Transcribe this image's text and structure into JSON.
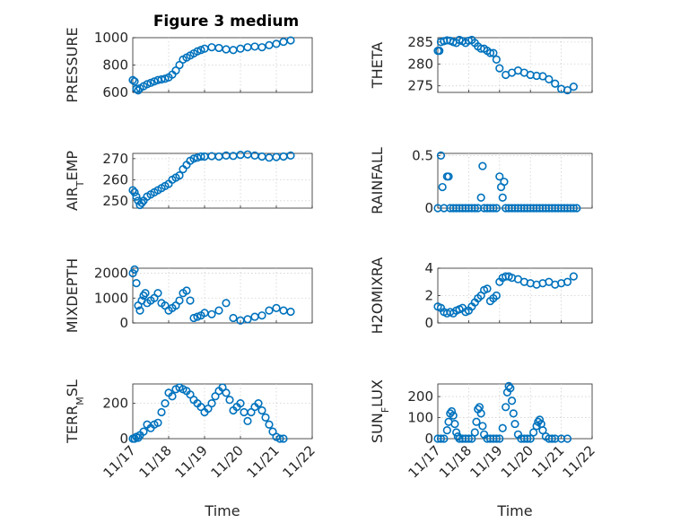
{
  "title": "Figure 3 medium",
  "colors": {
    "series": "#0072BD",
    "axes": "#262626",
    "grid": "#d0d0d0"
  },
  "chart_data": [
    {
      "type": "scatter",
      "ylabel": "PRESSURE",
      "xlabel": "",
      "xlim": [
        0,
        5
      ],
      "ylim": [
        600,
        1000
      ],
      "yticks": [
        600,
        800,
        1000
      ],
      "ytick_labels": [
        "600",
        "800",
        "1000"
      ],
      "xticks": [
        0,
        1,
        2,
        3,
        4,
        5
      ],
      "xtick_labels": [],
      "grid": true,
      "x": [
        0.0,
        0.05,
        0.1,
        0.15,
        0.2,
        0.3,
        0.4,
        0.5,
        0.6,
        0.7,
        0.8,
        0.9,
        1.0,
        1.1,
        1.2,
        1.3,
        1.4,
        1.5,
        1.6,
        1.7,
        1.8,
        1.9,
        2.0,
        2.2,
        2.4,
        2.6,
        2.8,
        3.0,
        3.2,
        3.4,
        3.6,
        3.8,
        4.0,
        4.2,
        4.4
      ],
      "y": [
        690,
        680,
        625,
        615,
        630,
        645,
        660,
        670,
        680,
        690,
        695,
        700,
        710,
        730,
        760,
        800,
        840,
        855,
        870,
        885,
        900,
        910,
        920,
        930,
        925,
        915,
        910,
        920,
        930,
        935,
        930,
        945,
        955,
        970,
        980
      ]
    },
    {
      "type": "scatter",
      "ylabel": "THETA",
      "xlabel": "",
      "xlim": [
        0,
        5
      ],
      "ylim": [
        273.5,
        286
      ],
      "yticks": [
        275,
        280,
        285
      ],
      "ytick_labels": [
        "275",
        "280",
        "285"
      ],
      "xticks": [
        0,
        1,
        2,
        3,
        4,
        5
      ],
      "xtick_labels": [],
      "grid": true,
      "x": [
        0.0,
        0.05,
        0.1,
        0.2,
        0.3,
        0.4,
        0.5,
        0.6,
        0.7,
        0.8,
        0.9,
        1.0,
        1.1,
        1.2,
        1.3,
        1.4,
        1.5,
        1.6,
        1.7,
        1.8,
        1.9,
        2.0,
        2.2,
        2.4,
        2.6,
        2.8,
        3.0,
        3.2,
        3.4,
        3.6,
        3.8,
        4.0,
        4.2,
        4.4
      ],
      "y": [
        283,
        283,
        285,
        285.2,
        285.4,
        285.3,
        285,
        284.8,
        285.5,
        285.2,
        284.8,
        285.3,
        285.5,
        284.8,
        284,
        283.5,
        283.5,
        283,
        282.5,
        282.5,
        281,
        279,
        277.5,
        278,
        278.5,
        278,
        277.5,
        277.3,
        277.2,
        276.5,
        275.5,
        274.3,
        274,
        274.8
      ]
    },
    {
      "type": "scatter",
      "ylabel": "AIR_TEMP",
      "xlabel": "",
      "xlim": [
        0,
        5
      ],
      "ylim": [
        246.5,
        272.5
      ],
      "yticks": [
        250,
        260,
        270
      ],
      "ytick_labels": [
        "250",
        "260",
        "270"
      ],
      "xticks": [
        0,
        1,
        2,
        3,
        4,
        5
      ],
      "xtick_labels": [],
      "grid": true,
      "x": [
        0.0,
        0.05,
        0.1,
        0.15,
        0.2,
        0.25,
        0.3,
        0.4,
        0.5,
        0.6,
        0.7,
        0.8,
        0.9,
        1.0,
        1.1,
        1.2,
        1.3,
        1.4,
        1.5,
        1.6,
        1.7,
        1.8,
        1.9,
        2.0,
        2.2,
        2.4,
        2.6,
        2.8,
        3.0,
        3.2,
        3.4,
        3.6,
        3.8,
        4.0,
        4.2,
        4.4
      ],
      "y": [
        255,
        254,
        252,
        250,
        248,
        249,
        250,
        252,
        253,
        254,
        255,
        256,
        257,
        258,
        260,
        261,
        262,
        265,
        267,
        269,
        270,
        270.5,
        271,
        271,
        271.2,
        271,
        271.5,
        271.3,
        271.8,
        272,
        271.5,
        271,
        270.5,
        270.8,
        271,
        271.5
      ]
    },
    {
      "type": "scatter",
      "ylabel": "RAINFALL",
      "xlabel": "",
      "xlim": [
        0,
        5
      ],
      "ylim": [
        0,
        0.52
      ],
      "yticks": [
        0,
        0.5
      ],
      "ytick_labels": [
        "0",
        "0.5"
      ],
      "xticks": [
        0,
        1,
        2,
        3,
        4,
        5
      ],
      "xtick_labels": [],
      "grid": true,
      "x": [
        0.0,
        0.1,
        0.15,
        0.2,
        0.3,
        0.35,
        0.4,
        0.5,
        0.6,
        0.7,
        0.8,
        0.9,
        1.0,
        1.1,
        1.2,
        1.3,
        1.4,
        1.45,
        1.5,
        1.6,
        1.7,
        1.8,
        1.9,
        2.0,
        2.05,
        2.1,
        2.15,
        2.2,
        2.3,
        2.4,
        2.5,
        2.6,
        2.7,
        2.8,
        2.9,
        3.0,
        3.1,
        3.2,
        3.3,
        3.4,
        3.5,
        3.6,
        3.7,
        3.8,
        3.9,
        4.0,
        4.1,
        4.2,
        4.3,
        4.4,
        4.5
      ],
      "y": [
        0,
        0.5,
        0.2,
        0,
        0.3,
        0.3,
        0,
        0,
        0,
        0,
        0,
        0,
        0,
        0,
        0,
        0,
        0.1,
        0.4,
        0,
        0,
        0,
        0,
        0,
        0.3,
        0.2,
        0.1,
        0.25,
        0,
        0,
        0,
        0,
        0,
        0,
        0,
        0,
        0,
        0,
        0,
        0,
        0,
        0,
        0,
        0,
        0,
        0,
        0,
        0,
        0,
        0,
        0,
        0
      ]
    },
    {
      "type": "scatter",
      "ylabel": "MIXDEPTH",
      "xlabel": "",
      "xlim": [
        0,
        5
      ],
      "ylim": [
        0,
        2200
      ],
      "yticks": [
        0,
        1000,
        2000
      ],
      "ytick_labels": [
        "0",
        "1000",
        "2000"
      ],
      "xticks": [
        0,
        1,
        2,
        3,
        4,
        5
      ],
      "xtick_labels": [],
      "grid": true,
      "x": [
        0.0,
        0.05,
        0.1,
        0.15,
        0.2,
        0.25,
        0.3,
        0.35,
        0.4,
        0.5,
        0.6,
        0.7,
        0.8,
        0.9,
        1.0,
        1.1,
        1.2,
        1.3,
        1.4,
        1.5,
        1.6,
        1.7,
        1.8,
        1.9,
        2.0,
        2.2,
        2.4,
        2.6,
        2.8,
        3.0,
        3.2,
        3.4,
        3.6,
        3.8,
        4.0,
        4.2,
        4.4
      ],
      "y": [
        2000,
        2150,
        1600,
        700,
        500,
        900,
        1100,
        1200,
        800,
        900,
        1000,
        1200,
        800,
        700,
        500,
        600,
        700,
        900,
        1200,
        1300,
        900,
        200,
        250,
        300,
        400,
        350,
        500,
        800,
        200,
        100,
        150,
        250,
        300,
        500,
        600,
        500,
        450
      ]
    },
    {
      "type": "scatter",
      "ylabel": "H2OMIXRA",
      "xlabel": "",
      "xlim": [
        0,
        5
      ],
      "ylim": [
        0,
        4
      ],
      "yticks": [
        0,
        2,
        4
      ],
      "ytick_labels": [
        "0",
        "2",
        "4"
      ],
      "xticks": [
        0,
        1,
        2,
        3,
        4,
        5
      ],
      "xtick_labels": [],
      "grid": true,
      "x": [
        0.0,
        0.1,
        0.2,
        0.3,
        0.4,
        0.5,
        0.6,
        0.7,
        0.8,
        0.9,
        1.0,
        1.1,
        1.2,
        1.3,
        1.4,
        1.5,
        1.6,
        1.7,
        1.8,
        1.9,
        2.0,
        2.1,
        2.2,
        2.3,
        2.4,
        2.6,
        2.8,
        3.0,
        3.2,
        3.4,
        3.6,
        3.8,
        4.0,
        4.2,
        4.4
      ],
      "y": [
        1.2,
        1.1,
        0.8,
        0.7,
        0.8,
        0.7,
        0.9,
        1.0,
        1.1,
        0.8,
        0.9,
        1.2,
        1.5,
        1.8,
        2.0,
        2.4,
        2.5,
        1.6,
        1.8,
        2.0,
        3.0,
        3.3,
        3.4,
        3.4,
        3.3,
        3.2,
        3.0,
        2.9,
        2.8,
        2.9,
        3.0,
        2.8,
        2.9,
        3.0,
        3.4
      ]
    },
    {
      "type": "scatter",
      "ylabel": "TERR_MSL",
      "xlabel": "Time",
      "xlim": [
        0,
        5
      ],
      "ylim": [
        0,
        310
      ],
      "yticks": [
        0,
        200
      ],
      "ytick_labels": [
        "0",
        "200"
      ],
      "xticks": [
        0,
        1,
        2,
        3,
        4,
        5
      ],
      "xtick_labels": [
        "11/17",
        "11/18",
        "11/19",
        "11/20",
        "11/21",
        "11/22"
      ],
      "grid": true,
      "x": [
        0.0,
        0.05,
        0.1,
        0.15,
        0.2,
        0.3,
        0.4,
        0.5,
        0.6,
        0.7,
        0.8,
        0.9,
        1.0,
        1.1,
        1.2,
        1.3,
        1.4,
        1.5,
        1.6,
        1.7,
        1.8,
        1.9,
        2.0,
        2.1,
        2.2,
        2.3,
        2.4,
        2.5,
        2.6,
        2.7,
        2.8,
        2.9,
        3.0,
        3.1,
        3.2,
        3.3,
        3.4,
        3.5,
        3.6,
        3.7,
        3.8,
        3.9,
        4.0,
        4.1,
        4.2
      ],
      "y": [
        0,
        0,
        10,
        5,
        20,
        40,
        80,
        60,
        80,
        90,
        150,
        200,
        260,
        240,
        280,
        290,
        280,
        270,
        250,
        220,
        200,
        180,
        150,
        170,
        200,
        240,
        270,
        290,
        260,
        220,
        160,
        180,
        200,
        150,
        100,
        150,
        180,
        200,
        160,
        120,
        80,
        40,
        10,
        0,
        0
      ]
    },
    {
      "type": "scatter",
      "ylabel": "SUN_FLUX",
      "xlabel": "Time",
      "xlim": [
        0,
        5
      ],
      "ylim": [
        0,
        260
      ],
      "yticks": [
        0,
        100,
        200
      ],
      "ytick_labels": [
        "0",
        "100",
        "200"
      ],
      "xticks": [
        0,
        1,
        2,
        3,
        4,
        5
      ],
      "xtick_labels": [
        "11/17",
        "11/18",
        "11/19",
        "11/20",
        "11/21",
        "11/22"
      ],
      "grid": true,
      "x": [
        0.0,
        0.1,
        0.2,
        0.3,
        0.35,
        0.4,
        0.45,
        0.5,
        0.55,
        0.6,
        0.65,
        0.7,
        0.8,
        0.9,
        1.0,
        1.1,
        1.2,
        1.25,
        1.3,
        1.35,
        1.4,
        1.45,
        1.5,
        1.6,
        1.7,
        1.8,
        1.9,
        2.0,
        2.1,
        2.2,
        2.25,
        2.3,
        2.35,
        2.4,
        2.45,
        2.5,
        2.6,
        2.7,
        2.8,
        2.9,
        3.0,
        3.1,
        3.2,
        3.25,
        3.3,
        3.35,
        3.4,
        3.5,
        3.6,
        3.7,
        3.8,
        4.0,
        4.2
      ],
      "y": [
        0,
        0,
        0,
        40,
        80,
        120,
        130,
        110,
        70,
        30,
        10,
        0,
        0,
        0,
        0,
        0,
        30,
        80,
        140,
        150,
        120,
        60,
        20,
        0,
        0,
        0,
        0,
        0,
        50,
        150,
        220,
        250,
        240,
        180,
        120,
        70,
        20,
        0,
        0,
        0,
        0,
        30,
        60,
        80,
        90,
        70,
        40,
        10,
        0,
        0,
        0,
        0,
        0
      ]
    }
  ]
}
